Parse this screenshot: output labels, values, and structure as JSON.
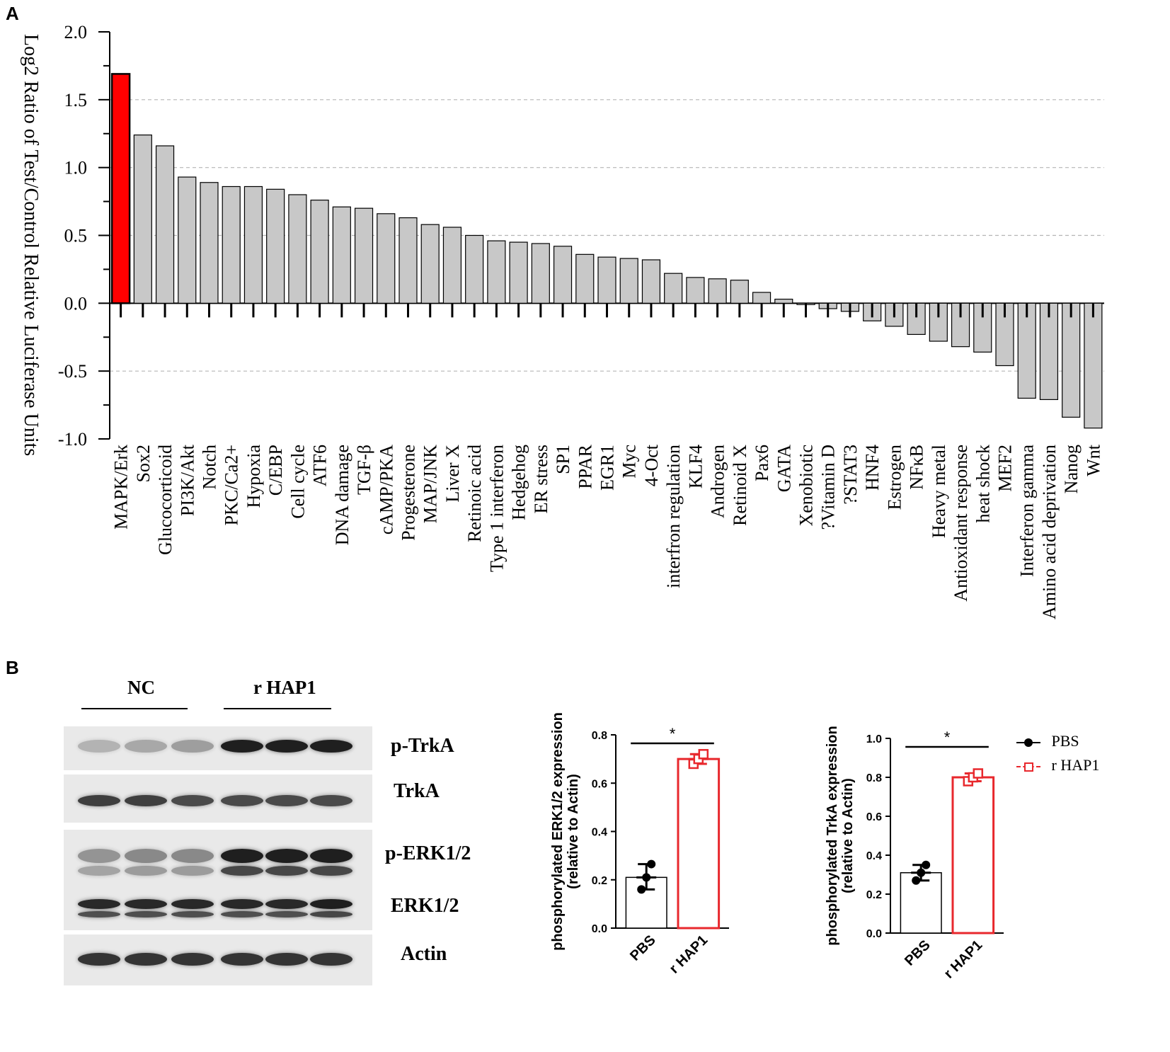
{
  "panels": {
    "a": "A",
    "b": "B"
  },
  "colors": {
    "highlight": "#ff0000",
    "bar": "#c8c8c8",
    "rhap1": "#e8282d",
    "pbs": "#000000"
  },
  "chart_data": [
    {
      "type": "bar",
      "ylabel": "Log2 Ratio of Test/Control  Relative Luciferase Units",
      "ylim": [
        -1.0,
        2.0
      ],
      "yticks": [
        "2.0",
        "1.5",
        "1.0",
        "0.5",
        "0.0",
        "-0.5",
        "-1.0"
      ],
      "grid": "dashed at 1.5, 1.0, 0.5, -0.5",
      "highlight_category": "MAPK/Erk",
      "categories": [
        "MAPK/Erk",
        "Sox2",
        "Glucocorticoid",
        "PI3K/Akt",
        "Notch",
        "PKC/Ca2+",
        "Hypoxia",
        "C/EBP",
        "Cell cycle",
        "ATF6",
        "DNA damage",
        "TGF-β",
        "cAMP/PKA",
        "Progesterone",
        "MAP/JNK",
        "Liver X",
        "Retinoic acid",
        "Type 1 interferon",
        "Hedgehog",
        "ER stress",
        "SP1",
        "PPAR",
        "EGR1",
        "Myc",
        "4-Oct",
        "interfron regulation",
        "KLF4",
        "Androgen",
        "Retinoid X",
        "Pax6",
        "GATA",
        "Xenobiotic",
        "?Vitamin D",
        "?STAT3",
        "HNF4",
        "Estrogen",
        "NFκB",
        "Heavy metal",
        "Antioxidant response",
        "heat shock",
        "MEF2",
        "Interferon gamma",
        "Amino acid deprivation",
        "Nanog",
        "Wnt"
      ],
      "values": [
        1.69,
        1.24,
        1.16,
        0.93,
        0.89,
        0.86,
        0.86,
        0.84,
        0.8,
        0.76,
        0.71,
        0.7,
        0.66,
        0.63,
        0.58,
        0.56,
        0.5,
        0.46,
        0.45,
        0.44,
        0.42,
        0.36,
        0.34,
        0.33,
        0.32,
        0.22,
        0.19,
        0.18,
        0.17,
        0.08,
        0.03,
        -0.01,
        -0.04,
        -0.06,
        -0.13,
        -0.17,
        -0.23,
        -0.28,
        -0.32,
        -0.36,
        -0.46,
        -0.7,
        -0.71,
        -0.84,
        -0.92
      ]
    },
    {
      "type": "bar",
      "ylabel": "phosphorylated ERK1/2 expression",
      "ylabel2": "(relative to Actin)",
      "ylim": [
        0.0,
        0.8
      ],
      "yticks": [
        "0.0",
        "0.2",
        "0.4",
        "0.6",
        "0.8"
      ],
      "categories": [
        "PBS",
        "r HAP1"
      ],
      "values": [
        0.21,
        0.7
      ],
      "points": [
        [
          0.16,
          0.21,
          0.265
        ],
        [
          0.68,
          0.7,
          0.72
        ]
      ],
      "errors": [
        [
          0.16,
          0.265
        ],
        [
          0.68,
          0.72
        ]
      ],
      "significance": "*"
    },
    {
      "type": "bar",
      "ylabel": "phosphorylated TrkA expression",
      "ylabel2": "(relative to Actin)",
      "ylim": [
        0.0,
        1.0
      ],
      "yticks": [
        "0.0",
        "0.2",
        "0.4",
        "0.6",
        "0.8",
        "1.0"
      ],
      "categories": [
        "PBS",
        "r HAP1"
      ],
      "values": [
        0.31,
        0.8
      ],
      "points": [
        [
          0.27,
          0.31,
          0.35
        ],
        [
          0.78,
          0.8,
          0.82
        ]
      ],
      "errors": [
        [
          0.27,
          0.35
        ],
        [
          0.78,
          0.82
        ]
      ],
      "significance": "*"
    }
  ],
  "blot": {
    "groups": [
      "NC",
      "r HAP1"
    ],
    "labels": [
      "p-TrkA",
      "TrkA",
      "p-ERK1/2",
      "ERK1/2",
      "Actin"
    ],
    "band_intensity": {
      "p-TrkA": [
        0.25,
        0.3,
        0.35,
        0.95,
        0.95,
        0.95
      ],
      "TrkA": [
        0.8,
        0.8,
        0.75,
        0.75,
        0.75,
        0.75
      ],
      "p-ERK1/2": [
        0.4,
        0.45,
        0.45,
        0.95,
        0.95,
        0.95
      ],
      "ERK1/2": [
        0.9,
        0.9,
        0.9,
        0.9,
        0.9,
        0.95
      ],
      "Actin": [
        0.85,
        0.85,
        0.85,
        0.85,
        0.85,
        0.85
      ]
    }
  },
  "legend": {
    "items": [
      "PBS",
      "r HAP1"
    ]
  }
}
